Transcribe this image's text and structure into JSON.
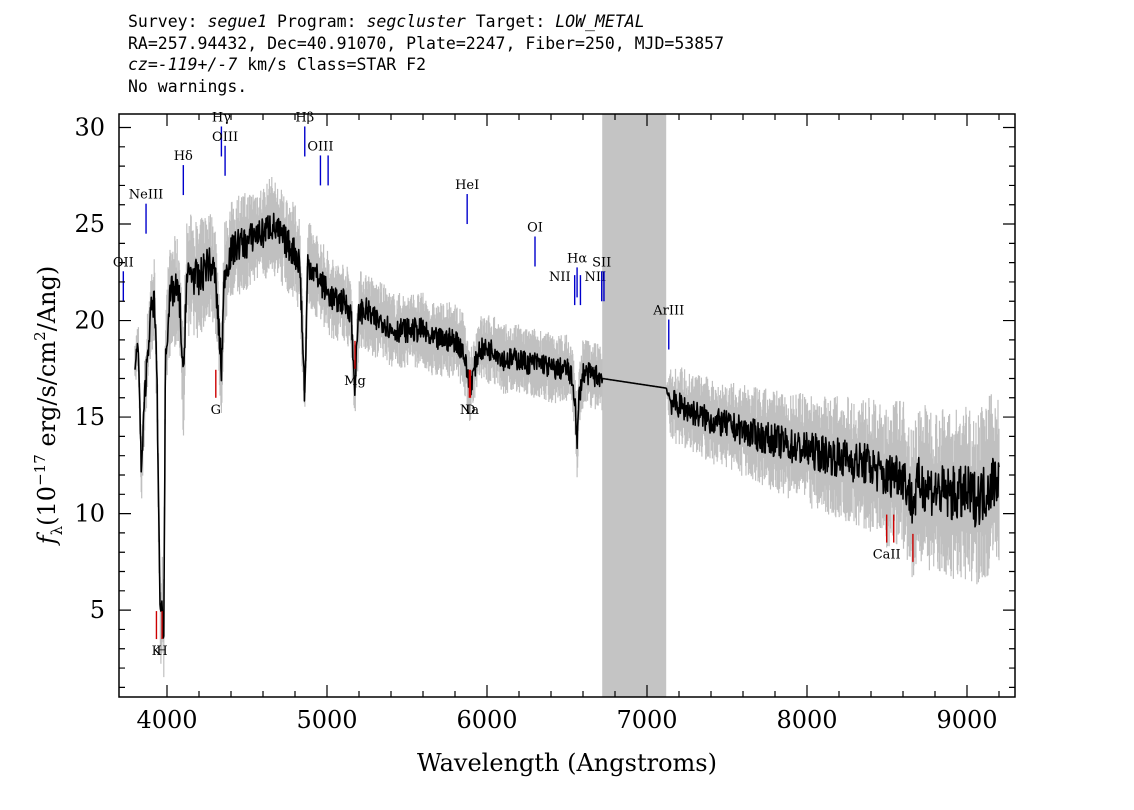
{
  "header": {
    "line1": {
      "survey_label": "Survey:",
      "survey": "segue1",
      "program_label": "Program:",
      "program": "segcluster",
      "target_label": "Target:",
      "target": "LOW_METAL"
    },
    "line2": "RA=257.94432, Dec=40.91070, Plate=2247, Fiber=250, MJD=53857",
    "line3": {
      "cz": "cz=-119+/-7",
      "rest": "km/s Class=STAR F2"
    },
    "line4": "No warnings."
  },
  "chart_data": {
    "type": "line",
    "xlabel": "Wavelength (Angstroms)",
    "ylabel": "f_λ (10^-17 erg/s/cm^2/Ang)",
    "ylabel_parts": {
      "f": "f",
      "sub": "λ",
      "pre": "(10",
      "exp": "−17",
      "mid": " erg/s/cm",
      "exp2": "2",
      "post": "/Ang)"
    },
    "xlim": [
      3700,
      9300
    ],
    "ylim": [
      0.5,
      30.7
    ],
    "x_ticks": [
      4000,
      5000,
      6000,
      7000,
      8000,
      9000
    ],
    "y_ticks": [
      5,
      10,
      15,
      20,
      25,
      30
    ],
    "masked_region": [
      6720,
      7120
    ],
    "colors": {
      "spectrum": "#000000",
      "error": "#c0c0c0",
      "mask": "#c4c4c4",
      "emission": "#0000cc",
      "absorption": "#cc0000"
    },
    "series": [
      {
        "role": "flux",
        "x": [
          3800,
          3820,
          3840,
          3860,
          3880,
          3900,
          3920,
          3935,
          3950,
          3960,
          3970,
          3980,
          3990,
          4010,
          4030,
          4060,
          4080,
          4102,
          4120,
          4150,
          4200,
          4250,
          4300,
          4340,
          4360,
          4400,
          4450,
          4500,
          4550,
          4600,
          4650,
          4700,
          4750,
          4800,
          4830,
          4861,
          4880,
          4920,
          4960,
          5000,
          5050,
          5100,
          5150,
          5172,
          5200,
          5250,
          5300,
          5350,
          5400,
          5450,
          5500,
          5550,
          5600,
          5650,
          5700,
          5750,
          5800,
          5850,
          5893,
          5950,
          6000,
          6050,
          6100,
          6150,
          6200,
          6250,
          6300,
          6350,
          6400,
          6450,
          6500,
          6530,
          6550,
          6563,
          6575,
          6600,
          6650,
          6700,
          6720,
          7120,
          7150,
          7200,
          7300,
          7400,
          7500,
          7600,
          7700,
          7800,
          7900,
          8000,
          8100,
          8200,
          8300,
          8400,
          8498,
          8542,
          8600,
          8662,
          8700,
          8800,
          8900,
          9000,
          9050,
          9100,
          9150,
          9200
        ],
        "y": [
          17.5,
          19.0,
          12.0,
          16.0,
          18.5,
          20.5,
          21.0,
          18.0,
          9.0,
          4.0,
          5.5,
          3.5,
          18.0,
          20.5,
          21.5,
          21.5,
          21.0,
          16.5,
          22.0,
          22.5,
          22.0,
          23.0,
          22.5,
          17.5,
          22.5,
          23.5,
          24.0,
          24.0,
          24.5,
          24.5,
          25.0,
          24.5,
          24.0,
          23.5,
          23.0,
          16.0,
          23.0,
          22.5,
          22.0,
          21.5,
          21.0,
          21.0,
          20.5,
          16.5,
          20.5,
          20.5,
          20.0,
          20.0,
          19.5,
          19.5,
          19.5,
          19.5,
          19.5,
          19.0,
          19.0,
          19.0,
          19.0,
          18.5,
          16.5,
          18.5,
          18.5,
          18.5,
          18.0,
          18.0,
          18.0,
          17.8,
          17.8,
          17.8,
          17.5,
          17.5,
          17.5,
          17.0,
          16.0,
          13.5,
          16.0,
          17.3,
          17.2,
          17.1,
          17.0,
          16.5,
          15.8,
          15.6,
          15.2,
          14.8,
          14.6,
          14.3,
          14.0,
          13.8,
          13.5,
          13.3,
          13.1,
          12.9,
          12.7,
          12.5,
          11.8,
          12.2,
          12.0,
          10.5,
          11.6,
          11.2,
          11.0,
          11.0,
          10.8,
          11.0,
          11.6,
          12.0
        ]
      },
      {
        "role": "error",
        "noise": [
          0.9,
          0.9,
          1.2,
          1.5,
          1.6,
          1.6,
          1.7,
          1.7,
          1.8,
          1.8,
          1.9,
          1.9,
          2.0,
          2.0,
          2.0,
          2.1,
          2.1,
          2.1,
          2.2,
          2.2,
          2.2,
          2.1,
          2.0,
          1.9,
          1.9,
          1.9,
          1.9,
          1.9,
          1.8,
          1.8,
          1.8,
          1.8,
          1.8,
          1.8,
          1.8,
          1.6,
          1.6,
          1.6,
          1.6,
          1.6,
          1.5,
          1.5,
          1.5,
          1.5,
          1.5,
          1.5,
          1.5,
          1.4,
          1.4,
          1.4,
          1.4,
          1.4,
          1.4,
          1.4,
          1.4,
          1.4,
          1.4,
          1.4,
          1.3,
          1.3,
          1.3,
          1.3,
          1.3,
          1.3,
          1.3,
          1.3,
          1.3,
          1.3,
          1.3,
          1.3,
          1.3,
          1.3,
          1.3,
          1.3,
          1.3,
          1.3,
          1.3,
          1.3,
          1.3,
          0,
          1.5,
          1.5,
          1.5,
          1.6,
          1.6,
          1.7,
          1.8,
          1.9,
          2.0,
          2.1,
          2.2,
          2.3,
          2.4,
          2.5,
          2.6,
          2.7,
          2.8,
          2.9,
          3.0,
          3.1,
          3.2,
          3.3,
          3.3,
          3.3,
          3.3,
          3.3
        ]
      }
    ],
    "lines": [
      {
        "label": "OII",
        "x": 3727,
        "y": 21,
        "kind": "emission",
        "label_pos": "above"
      },
      {
        "label": "NeIII",
        "x": 3869,
        "y": 24.5,
        "kind": "emission",
        "label_pos": "above"
      },
      {
        "label": "Hδ",
        "x": 4102,
        "y": 26.5,
        "kind": "emission",
        "label_pos": "above"
      },
      {
        "label": "Hγ",
        "x": 4340,
        "y": 28.5,
        "kind": "emission",
        "label_pos": "above"
      },
      {
        "label": "OIII",
        "x": 4363,
        "y": 27.5,
        "kind": "emission",
        "label_pos": "above"
      },
      {
        "label": "Hβ",
        "x": 4861,
        "y": 28.5,
        "kind": "emission",
        "label_pos": "above"
      },
      {
        "label": "OIII",
        "x": 4959,
        "y": 27,
        "kind": "emission",
        "label_pos": "above"
      },
      {
        "label": "",
        "x": 5007,
        "y": 27,
        "kind": "emission",
        "label_pos": "none"
      },
      {
        "label": "HeI",
        "x": 5876,
        "y": 25,
        "kind": "emission",
        "label_pos": "above"
      },
      {
        "label": "OI",
        "x": 6300,
        "y": 22.8,
        "kind": "emission",
        "label_pos": "above"
      },
      {
        "label": "NII",
        "x": 6548,
        "y": 20.8,
        "kind": "emission",
        "label_pos": "left"
      },
      {
        "label": "Hα",
        "x": 6563,
        "y": 21.2,
        "kind": "emission",
        "label_pos": "above"
      },
      {
        "label": "NII",
        "x": 6584,
        "y": 20.8,
        "kind": "emission",
        "label_pos": "right"
      },
      {
        "label": "SII",
        "x": 6717,
        "y": 21,
        "kind": "emission",
        "label_pos": "above"
      },
      {
        "label": "",
        "x": 6731,
        "y": 21,
        "kind": "emission",
        "label_pos": "none"
      },
      {
        "label": "ArIII",
        "x": 7136,
        "y": 18.5,
        "kind": "emission",
        "label_pos": "above"
      },
      {
        "label": "K",
        "x": 3934,
        "y": 3.5,
        "kind": "absorption",
        "label_pos": "below"
      },
      {
        "label": "H",
        "x": 3969,
        "y": 3.5,
        "kind": "absorption",
        "label_pos": "below"
      },
      {
        "label": "G",
        "x": 4305,
        "y": 16,
        "kind": "absorption",
        "label_pos": "below"
      },
      {
        "label": "Mg",
        "x": 5175,
        "y": 17.5,
        "kind": "absorption",
        "label_pos": "below"
      },
      {
        "label": "Na",
        "x": 5890,
        "y": 16,
        "kind": "absorption",
        "label_pos": "below"
      },
      {
        "label": "D",
        "x": 5896,
        "y": 16,
        "kind": "absorption",
        "label_pos": "below"
      },
      {
        "label": "CaII",
        "x": 8498,
        "y": 8.5,
        "kind": "absorption",
        "label_pos": "below"
      },
      {
        "label": "",
        "x": 8542,
        "y": 8.5,
        "kind": "absorption",
        "label_pos": "none"
      },
      {
        "label": "",
        "x": 8662,
        "y": 7.5,
        "kind": "absorption",
        "label_pos": "none"
      }
    ]
  }
}
